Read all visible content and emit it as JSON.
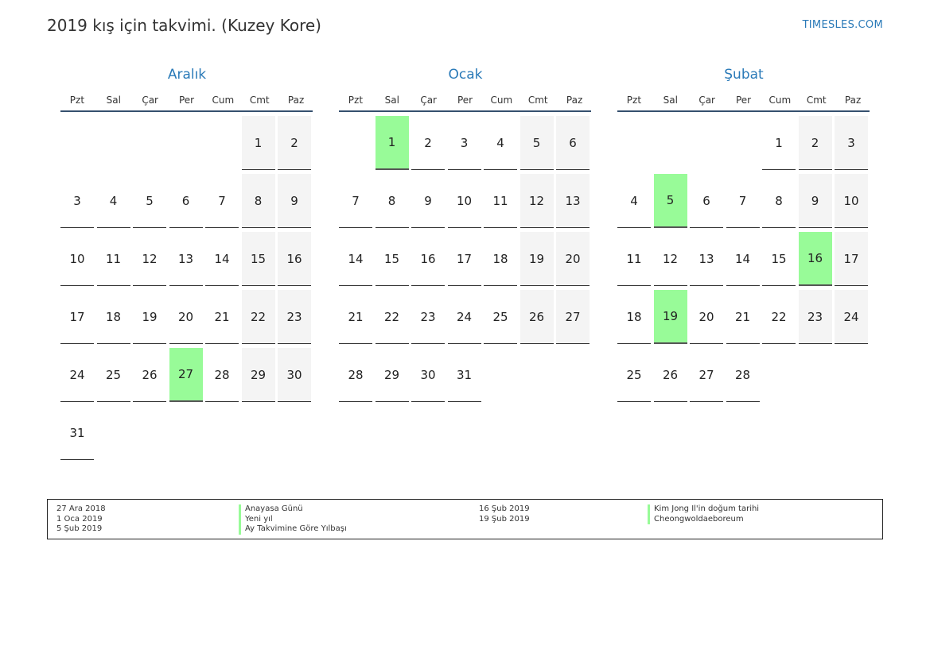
{
  "title": "2019 kış için takvimi. (Kuzey Kore)",
  "brand": "TIMESLES.COM",
  "colors": {
    "accent": "#2a7ab8",
    "holiday": "#98fb98",
    "weekend": "#f4f4f4"
  },
  "weekdays": [
    "Pzt",
    "Sal",
    "Çar",
    "Per",
    "Cum",
    "Cmt",
    "Paz"
  ],
  "months": [
    {
      "name": "Aralık",
      "offset": 5,
      "days": 31,
      "holidays": [
        27
      ]
    },
    {
      "name": "Ocak",
      "offset": 1,
      "days": 31,
      "holidays": [
        1
      ]
    },
    {
      "name": "Şubat",
      "offset": 4,
      "days": 28,
      "holidays": [
        5,
        16,
        19
      ]
    }
  ],
  "legend": {
    "left": [
      {
        "date": "27 Ara 2018",
        "name": "Anayasa Günü"
      },
      {
        "date": "1 Oca 2019",
        "name": "Yeni yıl"
      },
      {
        "date": "5 Şub 2019",
        "name": "Ay Takvimine Göre Yılbaşı"
      }
    ],
    "right": [
      {
        "date": "16 Şub 2019",
        "name": "Kim Jong Il'in doğum tarihi"
      },
      {
        "date": "19 Şub 2019",
        "name": "Cheongwoldaeboreum"
      }
    ]
  }
}
